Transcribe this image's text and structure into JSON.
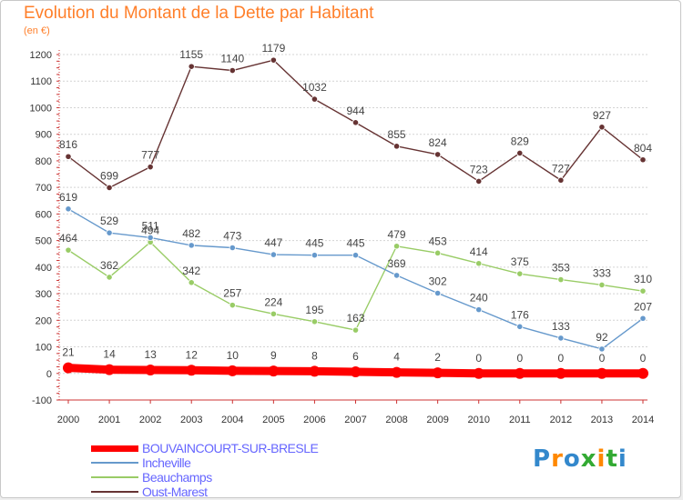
{
  "header": {
    "title": "Evolution du Montant de la Dette par Habitant",
    "subtitle": "(en €)"
  },
  "brand": {
    "text": "Proxiti"
  },
  "chart_data": {
    "type": "line",
    "title": "Evolution du Montant de la Dette par Habitant",
    "subtitle": "(en €)",
    "xlabel": "",
    "ylabel": "",
    "x": [
      2000,
      2001,
      2002,
      2003,
      2004,
      2005,
      2006,
      2007,
      2008,
      2009,
      2010,
      2011,
      2012,
      2013,
      2014
    ],
    "ylim": [
      -100,
      1200
    ],
    "yticks": [
      -100,
      0,
      100,
      200,
      300,
      400,
      500,
      600,
      700,
      800,
      900,
      1000,
      1100,
      1200
    ],
    "grid": "horizontal",
    "legend_position": "bottom-left",
    "series": [
      {
        "name": "BOUVAINCOURT-SUR-BRESLE",
        "color": "#ff0000",
        "values": [
          21,
          14,
          13,
          12,
          10,
          9,
          8,
          6,
          4,
          2,
          0,
          0,
          0,
          0,
          0
        ]
      },
      {
        "name": "Incheville",
        "color": "#6699cc",
        "values": [
          619,
          529,
          511,
          482,
          473,
          447,
          445,
          445,
          369,
          302,
          240,
          176,
          133,
          92,
          207
        ]
      },
      {
        "name": "Beauchamps",
        "color": "#99cc66",
        "values": [
          464,
          362,
          494,
          342,
          257,
          224,
          195,
          163,
          479,
          453,
          414,
          375,
          353,
          333,
          310
        ]
      },
      {
        "name": "Oust-Marest",
        "color": "#663333",
        "values": [
          816,
          699,
          777,
          1155,
          1140,
          1179,
          1032,
          944,
          855,
          824,
          723,
          829,
          727,
          927,
          804
        ]
      }
    ]
  }
}
